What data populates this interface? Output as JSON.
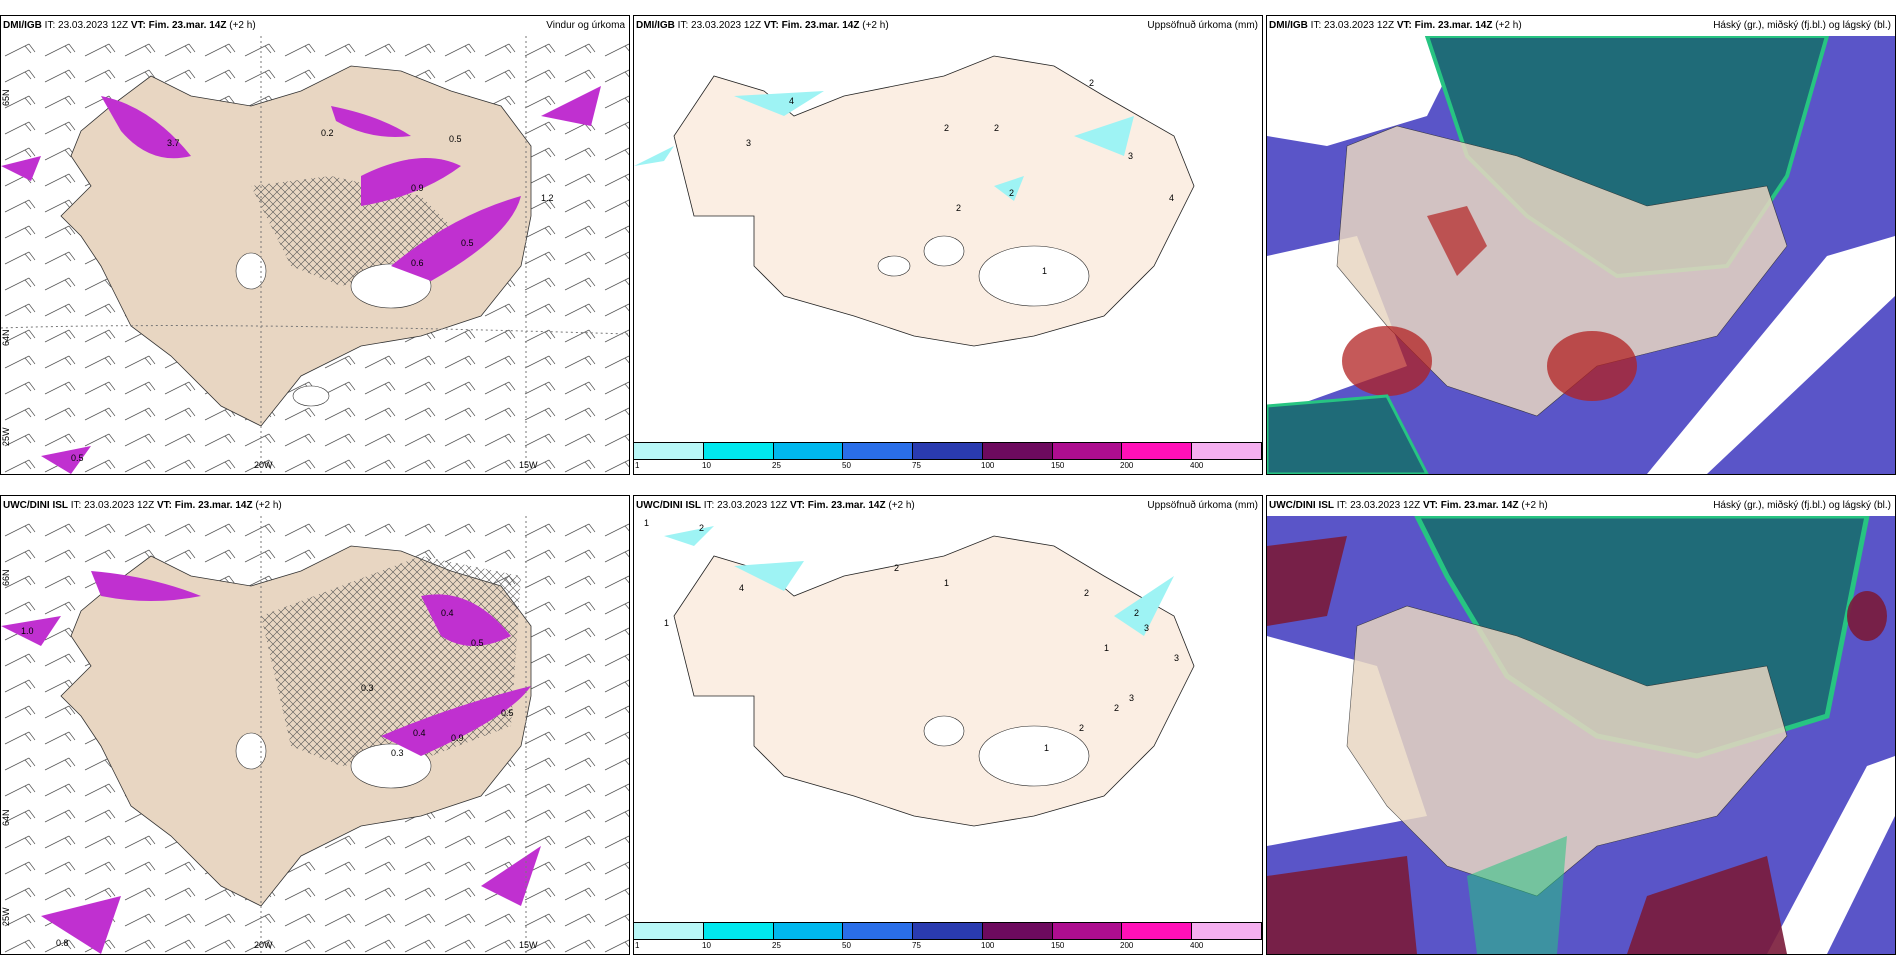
{
  "panels": [
    {
      "source": "DMI/IGB",
      "it_label": "IT:",
      "it": "23.03.2023 12Z",
      "vt_label": "VT:",
      "vt": "Fim. 23.mar. 14Z",
      "lead": "(+2 h)",
      "title": "Vindur og úrkoma"
    },
    {
      "source": "DMI/IGB",
      "it_label": "IT:",
      "it": "23.03.2023 12Z",
      "vt_label": "VT:",
      "vt": "Fim. 23.mar. 14Z",
      "lead": "(+2 h)",
      "title": "Uppsöfnuð úrkoma (mm)"
    },
    {
      "source": "DMI/IGB",
      "it_label": "IT:",
      "it": "23.03.2023 12Z",
      "vt_label": "VT:",
      "vt": "Fim. 23.mar. 14Z",
      "lead": "(+2 h)",
      "title": "Háský (gr.), miðský (fj.bl.) og lágský (bl.)"
    },
    {
      "source": "UWC/DINI ISL",
      "it_label": "IT:",
      "it": "23.03.2023 12Z",
      "vt_label": "VT:",
      "vt": "Fim. 23.mar. 14Z",
      "lead": "(+2 h)",
      "title": ""
    },
    {
      "source": "UWC/DINI ISL",
      "it_label": "IT:",
      "it": "23.03.2023 12Z",
      "vt_label": "VT:",
      "vt": "Fim. 23.mar. 14Z",
      "lead": "(+2 h)",
      "title": "Uppsöfnuð úrkoma (mm)"
    },
    {
      "source": "UWC/DINI ISL",
      "it_label": "IT:",
      "it": "23.03.2023 12Z",
      "vt_label": "VT:",
      "vt": "Fim. 23.mar. 14Z",
      "lead": "(+2 h)",
      "title": "Háský (gr.), miðský (fj.bl.) og lágský (bl.)"
    }
  ],
  "axis_labels": {
    "lon_20w": "20W",
    "lon_15w": "15W",
    "lat_65n": "65N",
    "lat_64n": "64N",
    "lon_25w": "25W",
    "lat_66n": "66N"
  },
  "wind_precip_values_top": [
    "3.7",
    "0.5",
    "0.9",
    "1.2",
    "0.2",
    "0.5",
    "0.6",
    "0.5"
  ],
  "wind_precip_values_bottom": [
    "1.0",
    "0.4",
    "0.3",
    "0.5",
    "0.4",
    "0.3",
    "0.9",
    "0.5",
    "0.8"
  ],
  "accum_values_top": [
    "3",
    "4",
    "2",
    "2",
    "3",
    "4",
    "2",
    "2",
    "2",
    "1"
  ],
  "accum_values_bottom": [
    "1",
    "2",
    "4",
    "2",
    "1",
    "1",
    "2",
    "2",
    "3",
    "3",
    "1",
    "2",
    "3",
    "1",
    "2"
  ],
  "legend_ticks": [
    "1",
    "10",
    "25",
    "50",
    "75",
    "100",
    "150",
    "200",
    "400"
  ],
  "colors": {
    "land": "#e8d6c2",
    "land_accum": "#fbeee3",
    "magenta": "#c030d0",
    "cyan": "#9ef3f4",
    "navy": "#1f3a8f",
    "teal": "#1f6b78",
    "green": "#27c482",
    "red": "#b22222",
    "violet": "#5a55c8"
  },
  "legend_colors": [
    "#b8f7f7",
    "#00e8ef",
    "#00b8ee",
    "#2a6ee8",
    "#2a3bb0",
    "#6d0a5e",
    "#ad0d8f",
    "#ff10b8",
    "#f5b0f0"
  ]
}
